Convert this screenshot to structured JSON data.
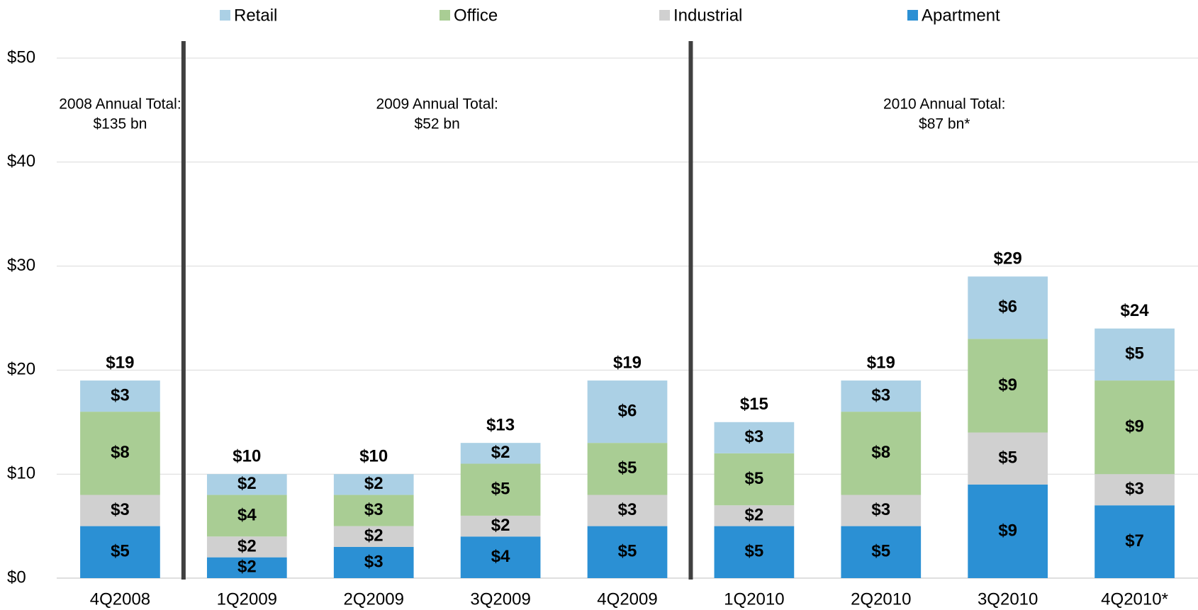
{
  "chart_data": {
    "type": "stacked-bar",
    "categories": [
      "4Q2008",
      "1Q2009",
      "2Q2009",
      "3Q2009",
      "4Q2009",
      "1Q2010",
      "2Q2010",
      "3Q2010",
      "4Q2010*"
    ],
    "series": [
      {
        "name": "Retail",
        "color": "#abd0e5",
        "values": [
          3,
          2,
          2,
          2,
          6,
          3,
          3,
          6,
          5
        ],
        "value_labels": [
          "$3",
          "$2",
          "$2",
          "$2",
          "$6",
          "$3",
          "$3",
          "$6",
          "$5"
        ]
      },
      {
        "name": "Office",
        "color": "#a9cd94",
        "values": [
          8,
          4,
          3,
          5,
          5,
          5,
          8,
          9,
          9
        ],
        "value_labels": [
          "$8",
          "$4",
          "$3",
          "$5",
          "$5",
          "$5",
          "$8",
          "$9",
          "$9"
        ]
      },
      {
        "name": "Industrial",
        "color": "#d0d0d0",
        "values": [
          3,
          2,
          2,
          2,
          3,
          2,
          3,
          5,
          3
        ],
        "value_labels": [
          "$3",
          "$2",
          "$2",
          "$2",
          "$3",
          "$2",
          "$3",
          "$5",
          "$3"
        ]
      },
      {
        "name": "Apartment",
        "color": "#2b90d4",
        "values": [
          5,
          2,
          3,
          4,
          5,
          5,
          5,
          9,
          7
        ],
        "value_labels": [
          "$5",
          "$2",
          "$3",
          "$4",
          "$5",
          "$5",
          "$5",
          "$9",
          "$7"
        ]
      }
    ],
    "totals": [
      19,
      10,
      10,
      13,
      19,
      15,
      19,
      29,
      24
    ],
    "total_labels": [
      "$19",
      "$10",
      "$10",
      "$13",
      "$19",
      "$15",
      "$19",
      "$29",
      "$24"
    ],
    "annotations": [
      {
        "lines": [
          "2008 Annual Total:",
          "$135 bn"
        ]
      },
      {
        "lines": [
          "2009 Annual Total:",
          "$52 bn"
        ]
      },
      {
        "lines": [
          "2010 Annual Total:",
          "$87 bn*"
        ]
      }
    ],
    "ylim": [
      0,
      50
    ],
    "yticks": [
      {
        "value": 0,
        "label": "$0"
      },
      {
        "value": 10,
        "label": "$10"
      },
      {
        "value": 20,
        "label": "$20"
      },
      {
        "value": 30,
        "label": "$30"
      },
      {
        "value": 40,
        "label": "$40"
      },
      {
        "value": 50,
        "label": "$50"
      }
    ],
    "grid": true,
    "legend": "top"
  }
}
